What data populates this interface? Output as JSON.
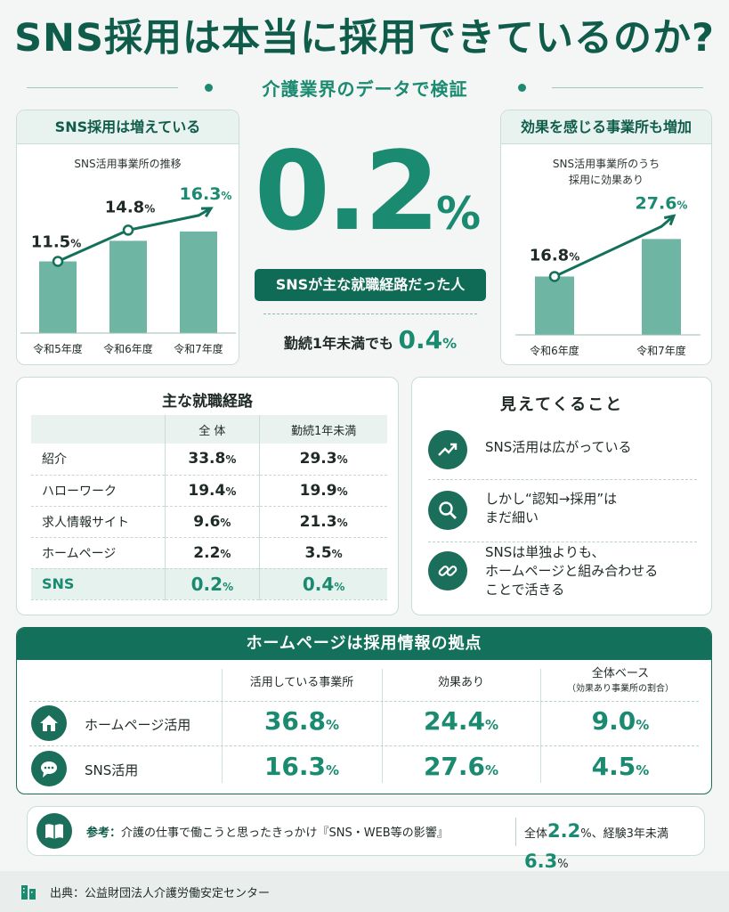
{
  "header": {
    "title": "SNS採用は本当に採用できているのか?",
    "subtitle": "介護業界のデータで検証"
  },
  "growth_card": {
    "title": "SNS採用は増えている",
    "caption": "SNS活用事業所の推移",
    "chart_data": {
      "type": "bar",
      "categories": [
        "令和5年度",
        "令和6年度",
        "令和7年度"
      ],
      "values": [
        11.5,
        14.8,
        16.3
      ],
      "value_labels": [
        "11.5",
        "14.8",
        "16.3"
      ],
      "unit": "%",
      "title": "SNS活用事業所の推移"
    }
  },
  "effect_card": {
    "title": "効果を感じる事業所も増加",
    "caption_line1": "SNS活用事業所のうち",
    "caption_line2": "採用に効果あり",
    "chart_data": {
      "type": "bar",
      "categories": [
        "令和6年度",
        "令和7年度"
      ],
      "values": [
        16.8,
        27.6
      ],
      "value_labels": [
        "16.8",
        "27.6"
      ],
      "unit": "%",
      "title": "SNS活用事業所のうち 採用に効果あり"
    }
  },
  "highlight": {
    "big_value": "0.2",
    "big_unit": "%",
    "label": "SNSが主な就職経路だった人",
    "sub_label": "勤続1年未満でも",
    "sub_value": "0.4",
    "sub_unit": "%"
  },
  "routes": {
    "title": "主な就職経路",
    "columns": [
      "",
      "全 体",
      "勤続1年未満"
    ],
    "rows": [
      {
        "label": "紹介",
        "all": "33.8",
        "under1": "29.3"
      },
      {
        "label": "ハローワーク",
        "all": "19.4",
        "under1": "19.9"
      },
      {
        "label": "求人情報サイト",
        "all": "9.6",
        "under1": "21.3"
      },
      {
        "label": "ホームページ",
        "all": "2.2",
        "under1": "3.5"
      },
      {
        "label": "SNS",
        "all": "0.2",
        "under1": "0.4"
      }
    ],
    "unit": "%"
  },
  "insights": {
    "title": "見えてくること",
    "items": [
      {
        "icon": "trend-up-icon",
        "line1": "SNS活用は広がっている",
        "line2": "",
        "line3": ""
      },
      {
        "icon": "magnifier-icon",
        "line1": "しかし“認知→採用”は",
        "line2": "まだ細い",
        "line3": ""
      },
      {
        "icon": "link-icon",
        "line1": "SNSは単独よりも、",
        "line2": "ホームページと組み合わせる",
        "line3": "ことで活きる"
      }
    ]
  },
  "homepage": {
    "title": "ホームページは採用情報の拠点",
    "col1": "活用している事業所",
    "col2": "効果あり",
    "col3": "全体ベース",
    "col3_note": "（効果あり事業所の割合）",
    "rows": [
      {
        "icon": "house-icon",
        "label": "ホームページ活用",
        "v1": "36.8",
        "v2": "24.4",
        "v3": "9.0"
      },
      {
        "icon": "chat-bubble-icon",
        "label": "SNS活用",
        "v1": "16.3",
        "v2": "27.6",
        "v3": "4.5"
      }
    ],
    "unit": "%"
  },
  "reference": {
    "prefix": "参考：",
    "text": "介護の仕事で働こうと思ったきっかけ『SNS・WEB等の影響』",
    "all_label": "全体",
    "all_value": "2.2",
    "sep": "%、経験3年未満",
    "exp_value": "6.3",
    "unit": "%"
  },
  "footer": {
    "source": "出典：公益財団法人介護労働安定センター"
  },
  "colors": {
    "primary": "#1a8a70",
    "dark": "#0f5c4a",
    "bar": "#6fb5a3",
    "background": "#f4f6f5"
  }
}
